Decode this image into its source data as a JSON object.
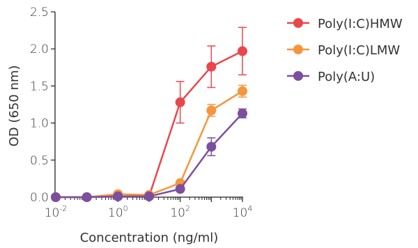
{
  "chart_data": {
    "type": "line",
    "xlabel": "Concentration (ng/ml)",
    "ylabel": "OD (650 nm)",
    "x_scale": "log",
    "xlim": [
      0.01,
      10000
    ],
    "ylim": [
      0,
      2.5
    ],
    "x": [
      0.01,
      0.1,
      1,
      10,
      100,
      1000,
      10000
    ],
    "x_ticks": [
      {
        "value": 0.01,
        "base": "10",
        "exp": "-2"
      },
      {
        "value": 1,
        "base": "10",
        "exp": "0"
      },
      {
        "value": 100,
        "base": "10",
        "exp": "2"
      },
      {
        "value": 10000,
        "base": "10",
        "exp": "4"
      }
    ],
    "y_ticks": [
      {
        "value": 0.0,
        "label": "0.0"
      },
      {
        "value": 0.5,
        "label": "0.5"
      },
      {
        "value": 1.0,
        "label": "1.0"
      },
      {
        "value": 1.5,
        "label": "1.5"
      },
      {
        "value": 2.0,
        "label": "2.0"
      },
      {
        "value": 2.5,
        "label": "2.5"
      }
    ],
    "grid": false,
    "legend_position": "top-right",
    "series": [
      {
        "name": "Poly(I:C)HMW",
        "color": "#e8474c",
        "values": [
          0.0,
          0.0,
          0.01,
          0.01,
          1.28,
          1.76,
          1.97
        ],
        "errors": [
          0,
          0,
          0,
          0,
          0.28,
          0.28,
          0.32
        ]
      },
      {
        "name": "Poly(I:C)LMW",
        "color": "#f5963d",
        "values": [
          0.0,
          0.0,
          0.04,
          0.03,
          0.19,
          1.17,
          1.43
        ],
        "errors": [
          0,
          0,
          0,
          0,
          0.02,
          0.08,
          0.08
        ]
      },
      {
        "name": "Poly(A:U)",
        "color": "#7b4f9e",
        "values": [
          0.0,
          0.0,
          0.01,
          0.01,
          0.11,
          0.68,
          1.13
        ],
        "errors": [
          0,
          0,
          0,
          0,
          0.02,
          0.12,
          0.06
        ]
      }
    ]
  }
}
